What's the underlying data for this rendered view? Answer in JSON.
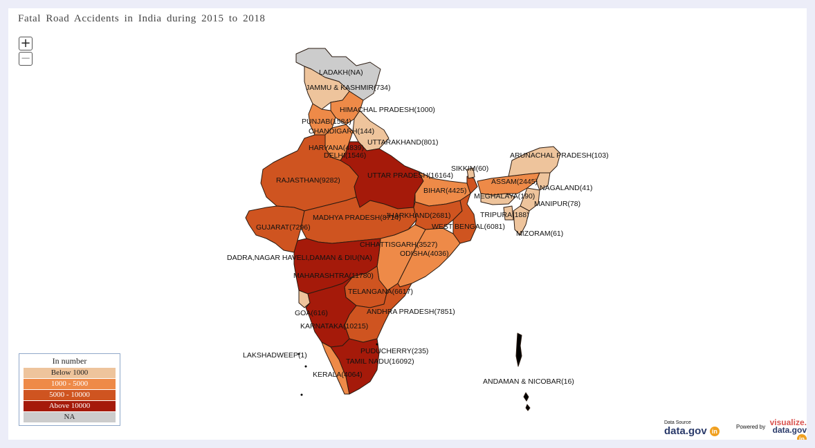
{
  "title": "Fatal Road Accidents  in India during  2015  to  2018",
  "zoom": {
    "in_label": "+",
    "out_label": "−"
  },
  "colors": {
    "below_1000": "#eec49c",
    "c1000_5000": "#ee8a48",
    "c5000_10000": "#cf5420",
    "above_10000": "#a51a0a",
    "na": "#cccccc"
  },
  "legend": {
    "title": "In number",
    "items": [
      {
        "label": "Below  1000",
        "color": "#eec49c",
        "text_color": "#222"
      },
      {
        "label": "1000  -  5000",
        "color": "#ee8a48",
        "text_color": "#fff"
      },
      {
        "label": "5000  -  10000",
        "color": "#cf5420",
        "text_color": "#fff"
      },
      {
        "label": "Above  10000",
        "color": "#a51a0a",
        "text_color": "#fff"
      },
      {
        "label": "NA",
        "color": "#cccccc",
        "text_color": "#222"
      }
    ]
  },
  "labels": {
    "ladakh": "LADAKH(NA)",
    "jk": "JAMMU & KASHMIR(734)",
    "hp": "HIMACHAL PRADESH(1000)",
    "punjab": "PUNJAB(1584)",
    "chandigarh": "CHANDIGARH(144)",
    "uttarakhand": "UTTARAKHAND(801)",
    "haryana": "HARYANA(4839)",
    "delhi": "DELHI(1546)",
    "arunachal": "ARUNACHAL PRADESH(103)",
    "sikkim": "SIKKIM(60)",
    "up": "UTTAR PRADESH(16164)",
    "rajasthan": "RAJASTHAN(9282)",
    "assam": "ASSAM(2445)",
    "nagaland": "NAGALAND(41)",
    "bihar": "BIHAR(4425)",
    "meghalaya": "MEGHALAYA(190)",
    "manipur": "MANIPUR(78)",
    "mp": "MADHYA PRADESH(8714)",
    "jharkhand": "JHARKHAND(2681)",
    "tripura": "TRIPURA(188)",
    "gujarat": "GUJARAT(7296)",
    "wb": "WEST BENGAL(6081)",
    "mizoram": "MIZORAM(61)",
    "chhattisgarh": "CHHATTISGARH(3527)",
    "odisha": "ODISHA(4036)",
    "dnh": "DADRA,NAGAR HAVELI,DAMAN & DIU(NA)",
    "maharashtra": "MAHARASHTRA(11780)",
    "telangana": "TELANGANA(6617)",
    "ap": "ANDHRA PRADESH(7851)",
    "goa": "GOA(616)",
    "karnataka": "KARNATAKA(10215)",
    "puducherry": "PUDUCHERRY(235)",
    "lakshadweep": "LAKSHADWEEP(1)",
    "tn": "TAMIL NADU(16092)",
    "kerala": "KERALA(4064)",
    "andaman": "ANDAMAN & NICOBAR(16)"
  },
  "credits": {
    "source_small": "Data Source",
    "source_logo": "data.gov",
    "powered_small": "Powered by",
    "powered_logo_1": "visualize.",
    "powered_logo_2": "data.gov",
    "badge": "in"
  }
}
